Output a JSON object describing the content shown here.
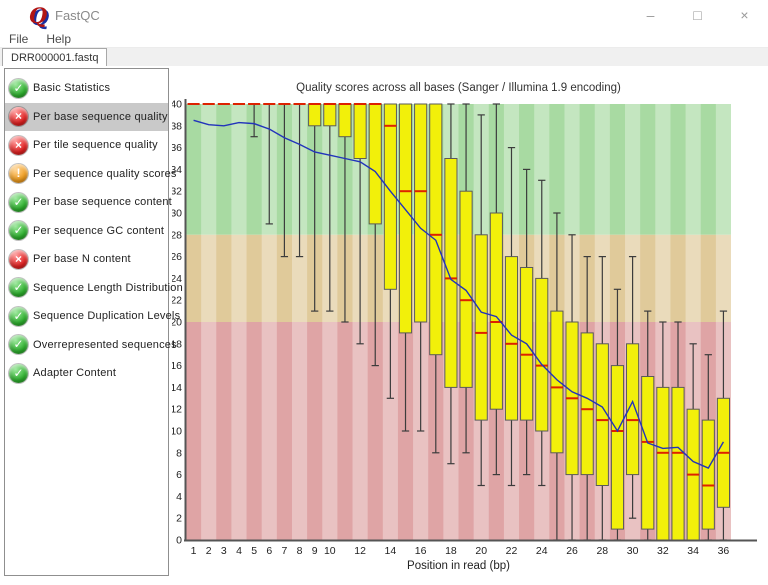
{
  "window": {
    "title": "FastQC",
    "controls": [
      {
        "name": "minimize",
        "glyph": "–"
      },
      {
        "name": "maximize",
        "glyph": "□"
      },
      {
        "name": "close",
        "glyph": "×"
      }
    ]
  },
  "menu": {
    "items": [
      "File",
      "Help"
    ]
  },
  "tab_bar": {
    "active_tab": "DRR000001.fastq"
  },
  "sidebar": {
    "selected_index": 1,
    "status_colors": {
      "pass": "#2db02d",
      "fail": "#e02020",
      "warn": "#f09c1c"
    },
    "items": [
      {
        "label": "Basic Statistics",
        "status": "pass"
      },
      {
        "label": "Per base sequence quality",
        "status": "fail"
      },
      {
        "label": "Per tile sequence quality",
        "status": "fail"
      },
      {
        "label": "Per sequence quality scores",
        "status": "warn"
      },
      {
        "label": "Per base sequence content",
        "status": "pass"
      },
      {
        "label": "Per sequence GC content",
        "status": "pass"
      },
      {
        "label": "Per base N content",
        "status": "fail"
      },
      {
        "label": "Sequence Length Distribution",
        "status": "pass"
      },
      {
        "label": "Sequence Duplication Levels",
        "status": "pass"
      },
      {
        "label": "Overrepresented sequences",
        "status": "pass"
      },
      {
        "label": "Adapter Content",
        "status": "pass"
      }
    ]
  },
  "chart_data": {
    "type": "boxplot",
    "title": "Quality scores across all bases (Sanger / Illumina 1.9 encoding)",
    "xlabel": "Position in read (bp)",
    "ylim": [
      0,
      40
    ],
    "y_tick_step": 2,
    "x_tick_labels": [
      1,
      2,
      3,
      4,
      5,
      6,
      7,
      8,
      9,
      10,
      12,
      14,
      16,
      18,
      20,
      22,
      24,
      26,
      28,
      30,
      32,
      34,
      36
    ],
    "zones": [
      {
        "label": "good-quality-zone",
        "min": 28,
        "max": 40,
        "color": "#a8daa2"
      },
      {
        "label": "ok-quality-zone",
        "min": 20,
        "max": 28,
        "color": "#e0ca9a"
      },
      {
        "label": "poor-quality-zone",
        "min": 0,
        "max": 20,
        "color": "#dfa4a5"
      }
    ],
    "stripe_overlay": "rgba(255,255,255,0.33)",
    "box_color": "#f2f00a",
    "box_border_color": "#5a5a5a",
    "median_color": "#dd2200",
    "whisker_color": "#3c3c3c",
    "mean_line_color": "#2233bb",
    "axis_color": "#555555",
    "series": {
      "positions": [
        1,
        2,
        3,
        4,
        5,
        6,
        7,
        8,
        9,
        10,
        11,
        12,
        13,
        14,
        15,
        16,
        17,
        18,
        19,
        20,
        21,
        22,
        23,
        24,
        25,
        26,
        27,
        28,
        29,
        30,
        31,
        32,
        33,
        34,
        35,
        36
      ],
      "whisker_low": [
        40,
        40,
        40,
        40,
        37,
        29,
        26,
        26,
        21,
        21,
        20,
        18,
        16,
        13,
        10,
        10,
        8,
        7,
        8,
        5,
        6,
        5,
        6,
        5,
        0,
        0,
        0,
        0,
        0,
        2,
        0,
        0,
        0,
        0,
        0,
        0
      ],
      "q1": [
        40,
        40,
        40,
        40,
        40,
        40,
        40,
        40,
        38,
        38,
        37,
        35,
        29,
        23,
        19,
        20,
        17,
        14,
        14,
        11,
        12,
        11,
        11,
        10,
        8,
        6,
        6,
        5,
        1,
        6,
        1,
        0,
        0,
        0,
        1,
        3
      ],
      "median": [
        40,
        40,
        40,
        40,
        40,
        40,
        40,
        40,
        40,
        40,
        40,
        40,
        40,
        38,
        32,
        32,
        28,
        24,
        22,
        19,
        20,
        18,
        17,
        16,
        14,
        13,
        12,
        11,
        10,
        11,
        9,
        8,
        8,
        6,
        5,
        8
      ],
      "q3": [
        40,
        40,
        40,
        40,
        40,
        40,
        40,
        40,
        40,
        40,
        40,
        40,
        40,
        40,
        40,
        40,
        40,
        35,
        32,
        28,
        30,
        26,
        25,
        24,
        21,
        20,
        19,
        18,
        16,
        18,
        15,
        14,
        14,
        12,
        11,
        13
      ],
      "whisker_high": [
        40,
        40,
        40,
        40,
        40,
        40,
        40,
        40,
        40,
        40,
        40,
        40,
        40,
        40,
        40,
        40,
        40,
        40,
        40,
        39,
        40,
        36,
        34,
        33,
        30,
        28,
        26,
        26,
        23,
        26,
        21,
        20,
        20,
        18,
        17,
        21
      ],
      "mean": [
        38.5,
        38.1,
        38.0,
        38.3,
        38.2,
        37.7,
        36.9,
        36.3,
        35.6,
        35.3,
        35.0,
        34.7,
        33.8,
        32.0,
        30.3,
        28.6,
        27.5,
        23.9,
        22.9,
        20.9,
        20.5,
        18.8,
        18.0,
        16.1,
        14.7,
        13.6,
        13.0,
        12.2,
        10.0,
        12.7,
        8.9,
        8.4,
        8.5,
        7.2,
        6.6,
        9.0
      ]
    }
  }
}
